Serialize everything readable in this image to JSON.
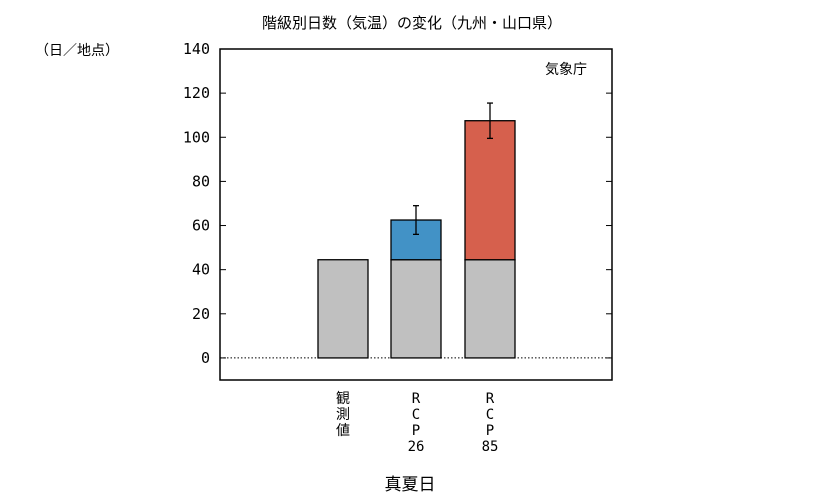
{
  "chart_data": {
    "type": "bar",
    "stacked": true,
    "title": "階級別日数（気温）の変化（九州・山口県）",
    "ylabel": "（日／地点）",
    "xlabel": "真夏日",
    "credit": "気象庁",
    "ylim": [
      -10,
      140
    ],
    "yticks": [
      0,
      20,
      40,
      60,
      80,
      100,
      120,
      140
    ],
    "categories": [
      "観測値",
      "RCP26",
      "RCP85"
    ],
    "category_labels": [
      [
        "観",
        "測",
        "値"
      ],
      [
        "R",
        "C",
        "P",
        "26"
      ],
      [
        "R",
        "C",
        "P",
        "85"
      ]
    ],
    "series": [
      {
        "key": "base",
        "values": [
          44.5,
          44.5,
          44.5
        ],
        "colors": [
          "#c0c0c0",
          "#c0c0c0",
          "#c0c0c0"
        ]
      },
      {
        "key": "increase",
        "values": [
          0,
          18,
          63
        ],
        "colors": [
          "#c0c0c0",
          "#4292c6",
          "#d6604d"
        ]
      }
    ],
    "error_bars": [
      null,
      {
        "low": 56,
        "high": 69
      },
      {
        "low": 99.5,
        "high": 115.5
      }
    ],
    "zero_line": {
      "style": "dotted"
    },
    "grid": false
  }
}
